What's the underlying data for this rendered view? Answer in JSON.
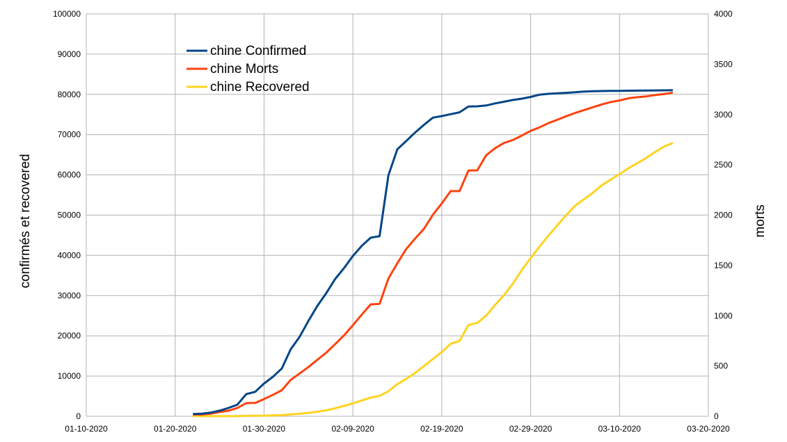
{
  "chart_data": {
    "type": "line",
    "title": "",
    "xlabel": "",
    "ylabel": "confirmés et recovered",
    "y2label": "morts",
    "x_ticks": [
      "01-10-2020",
      "01-20-2020",
      "01-30-2020",
      "02-09-2020",
      "02-19-2020",
      "02-29-2020",
      "03-10-2020",
      "03-20-2020"
    ],
    "xlim": [
      "2020-01-10",
      "2020-03-20"
    ],
    "ylim": [
      0,
      100000
    ],
    "y_ticks": [
      "0",
      "10000",
      "20000",
      "30000",
      "40000",
      "50000",
      "60000",
      "70000",
      "80000",
      "90000",
      "100000"
    ],
    "y2lim": [
      0,
      4000
    ],
    "y2_ticks": [
      "0",
      "500",
      "1000",
      "1500",
      "2000",
      "2500",
      "3000",
      "3500",
      "4000"
    ],
    "grid": true,
    "legend_position": "top-left",
    "x": [
      "2020-01-22",
      "2020-01-23",
      "2020-01-24",
      "2020-01-25",
      "2020-01-26",
      "2020-01-27",
      "2020-01-28",
      "2020-01-29",
      "2020-01-30",
      "2020-01-31",
      "2020-02-01",
      "2020-02-02",
      "2020-02-03",
      "2020-02-04",
      "2020-02-05",
      "2020-02-06",
      "2020-02-07",
      "2020-02-08",
      "2020-02-09",
      "2020-02-10",
      "2020-02-11",
      "2020-02-12",
      "2020-02-13",
      "2020-02-14",
      "2020-02-15",
      "2020-02-16",
      "2020-02-17",
      "2020-02-18",
      "2020-02-19",
      "2020-02-20",
      "2020-02-21",
      "2020-02-22",
      "2020-02-23",
      "2020-02-24",
      "2020-02-25",
      "2020-02-26",
      "2020-02-27",
      "2020-02-28",
      "2020-02-29",
      "2020-03-01",
      "2020-03-02",
      "2020-03-03",
      "2020-03-04",
      "2020-03-05",
      "2020-03-06",
      "2020-03-07",
      "2020-03-08",
      "2020-03-09",
      "2020-03-10",
      "2020-03-11",
      "2020-03-12",
      "2020-03-13",
      "2020-03-14",
      "2020-03-15",
      "2020-03-16"
    ],
    "series": [
      {
        "name": "chine Confirmed",
        "axis": "left",
        "color": "#004586",
        "values": [
          548,
          643,
          920,
          1406,
          2075,
          2877,
          5509,
          6087,
          8141,
          9802,
          11891,
          16630,
          19716,
          23707,
          27440,
          30587,
          34110,
          36814,
          39829,
          42354,
          44386,
          44759,
          59895,
          66358,
          68413,
          70513,
          72434,
          74211,
          74619,
          75077,
          75550,
          77001,
          77022,
          77241,
          77754,
          78166,
          78600,
          78928,
          79356,
          79932,
          80136,
          80261,
          80386,
          80537,
          80690,
          80770,
          80823,
          80860,
          80887,
          80921,
          80932,
          80945,
          80977,
          81003,
          81033
        ]
      },
      {
        "name": "chine Morts",
        "axis": "right",
        "color": "#ff420e",
        "values": [
          17,
          18,
          26,
          42,
          56,
          82,
          131,
          133,
          171,
          213,
          259,
          361,
          425,
          490,
          562,
          632,
          717,
          804,
          904,
          1011,
          1112,
          1117,
          1369,
          1521,
          1663,
          1766,
          1864,
          2003,
          2116,
          2238,
          2238,
          2443,
          2445,
          2595,
          2665,
          2717,
          2746,
          2790,
          2837,
          2872,
          2914,
          2947,
          2983,
          3015,
          3044,
          3072,
          3100,
          3123,
          3139,
          3161,
          3172,
          3180,
          3193,
          3203,
          3217
        ]
      },
      {
        "name": "chine Recovered",
        "axis": "left",
        "color": "#ffd320",
        "values": [
          28,
          30,
          36,
          39,
          49,
          58,
          101,
          120,
          135,
          214,
          275,
          463,
          614,
          843,
          1115,
          1477,
          1999,
          2596,
          3219,
          3918,
          4636,
          5082,
          6217,
          7977,
          9298,
          10755,
          12462,
          14206,
          15962,
          18014,
          18704,
          22699,
          23187,
          25015,
          27676,
          30084,
          32930,
          36329,
          39320,
          42162,
          44854,
          47450,
          50001,
          52292,
          53944,
          55539,
          57388,
          58804,
          60181,
          61644,
          62901,
          64196,
          65660,
          67017,
          67910
        ]
      }
    ]
  }
}
